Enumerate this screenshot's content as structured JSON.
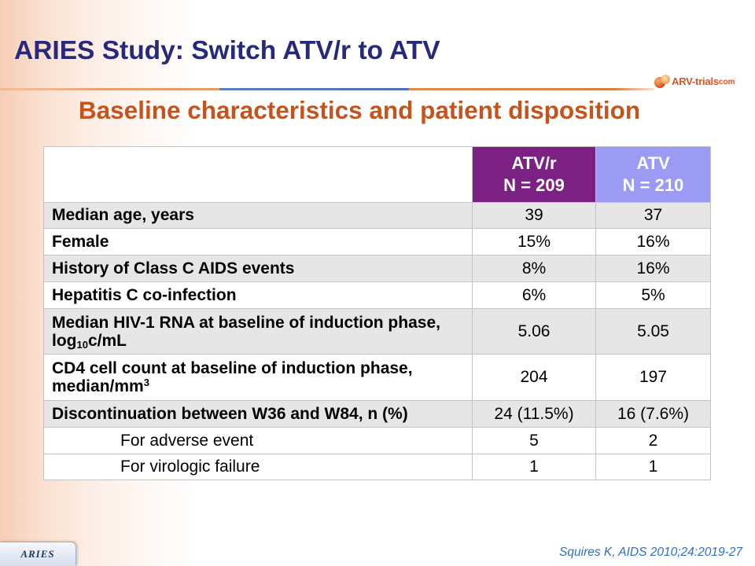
{
  "slide": {
    "title": "ARIES Study: Switch ATV/r to ATV",
    "subtitle": "Baseline characteristics and patient disposition",
    "study_tab": "ARIES",
    "citation": "Squires K, AIDS 2010;24:2019-27"
  },
  "logo": {
    "icon": "arv-trials-lens-icon",
    "wordmark": "ARV-trials",
    "suffix": "com"
  },
  "table": {
    "header": {
      "atv_r": {
        "arm": "ATV/r",
        "n": "N = 209"
      },
      "atv": {
        "arm": "ATV",
        "n": "N = 210"
      }
    },
    "rows": [
      {
        "label": "Median age, years",
        "atv_r": "39",
        "atv": "37"
      },
      {
        "label": "Female",
        "atv_r": "15%",
        "atv": "16%"
      },
      {
        "label": "History of Class C AIDS events",
        "atv_r": "8%",
        "atv": "16%"
      },
      {
        "label": "Hepatitis C co-infection",
        "atv_r": "6%",
        "atv": "5%"
      },
      {
        "label": "Median HIV-1 RNA at baseline of induction phase,",
        "unit_pre": "log",
        "unit_sub": "10",
        "unit_post": "c/mL",
        "atv_r": "5.06",
        "atv": "5.05"
      },
      {
        "label": "CD4 cell count at baseline of induction phase,",
        "unit_pre": "median/mm",
        "unit_sup": "3",
        "atv_r": "204",
        "atv": "197"
      },
      {
        "label": "Discontinuation between W36 and W84, n (%)",
        "atv_r": "24 (11.5%)",
        "atv": "16 (7.6%)"
      },
      {
        "label": "For adverse event",
        "atv_r": "5",
        "atv": "2"
      },
      {
        "label": "For virologic failure",
        "atv_r": "1",
        "atv": "1"
      }
    ]
  },
  "colors": {
    "title": "#27297D",
    "subtitle": "#C4531D",
    "header_atv_r": "#7B2183",
    "header_atv": "#9B9BF4",
    "row_shade": "#E6E6E6",
    "grid": "#C4C4C4",
    "citation": "#2F6FC9",
    "logo": "#E0501F"
  }
}
